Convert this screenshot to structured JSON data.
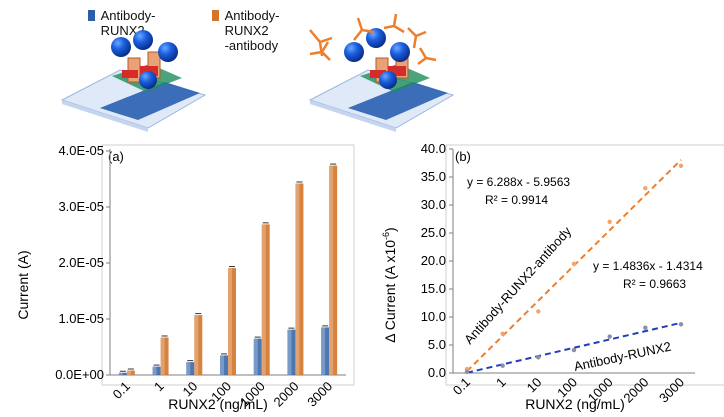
{
  "legend": {
    "item1": {
      "label": "Antibody-RUNX2",
      "color": "#2e5fa6"
    },
    "item2": {
      "label_line1": "Antibody-RUNX2",
      "label_line2": "-antibody",
      "color": "#d3762b"
    }
  },
  "chart_data": [
    {
      "type": "bar",
      "panel_label": "(a)",
      "title": "",
      "xlabel": "RUNX2 (ng/mL)",
      "ylabel": "Current (A)",
      "categories": [
        "0.1",
        "1",
        "10",
        "100",
        "1000",
        "2000",
        "3000"
      ],
      "yticks": [
        "0.0E+00",
        "1.0E-05",
        "2.0E-05",
        "3.0E-05",
        "4.0E-05"
      ],
      "ylim": [
        0,
        4e-05
      ],
      "grid": false,
      "series": [
        {
          "name": "Antibody-RUNX2",
          "color": "#2e5fa6",
          "values": [
            4e-07,
            1.5e-06,
            2.3e-06,
            3.5e-06,
            6.5e-06,
            8.1e-06,
            8.5e-06
          ]
        },
        {
          "name": "Antibody-RUNX2-antibody",
          "color": "#d3762b",
          "values": [
            8e-07,
            6.7e-06,
            1.07e-05,
            1.91e-05,
            2.69e-05,
            3.42e-05,
            3.74e-05
          ]
        }
      ]
    },
    {
      "type": "scatter",
      "panel_label": "(b)",
      "title": "",
      "xlabel": "RUNX2 (ng/mL)",
      "ylabel": "Δ Current (A x10",
      "ylabel_sup": "-6",
      "ylabel_end": ")",
      "categories": [
        "0.1",
        "1",
        "10",
        "100",
        "1000",
        "2000",
        "3000"
      ],
      "yticks": [
        "0.0",
        "5.0",
        "10.0",
        "15.0",
        "20.0",
        "25.0",
        "30.0",
        "35.0",
        "40.0"
      ],
      "ylim": [
        0,
        40
      ],
      "grid": false,
      "series": [
        {
          "name": "Antibody-RUNX2-antibody",
          "color": "#ef7e2a",
          "values": [
            0.7,
            7.0,
            11.0,
            19.5,
            27.0,
            33.0,
            37.0
          ],
          "fit": {
            "slope": 6.288,
            "intercept": -5.9563
          },
          "equation": "y = 6.288x - 5.9563",
          "r2": "R² = 0.9914"
        },
        {
          "name": "Antibody-RUNX2",
          "color": "#1f3fbf",
          "values": [
            0.2,
            1.3,
            2.8,
            4.1,
            6.5,
            8.1,
            8.7
          ],
          "fit": {
            "slope": 1.4836,
            "intercept": -1.4314
          },
          "equation": "y = 1.4836x - 1.4314",
          "r2": "R² = 0.9663"
        }
      ]
    }
  ]
}
